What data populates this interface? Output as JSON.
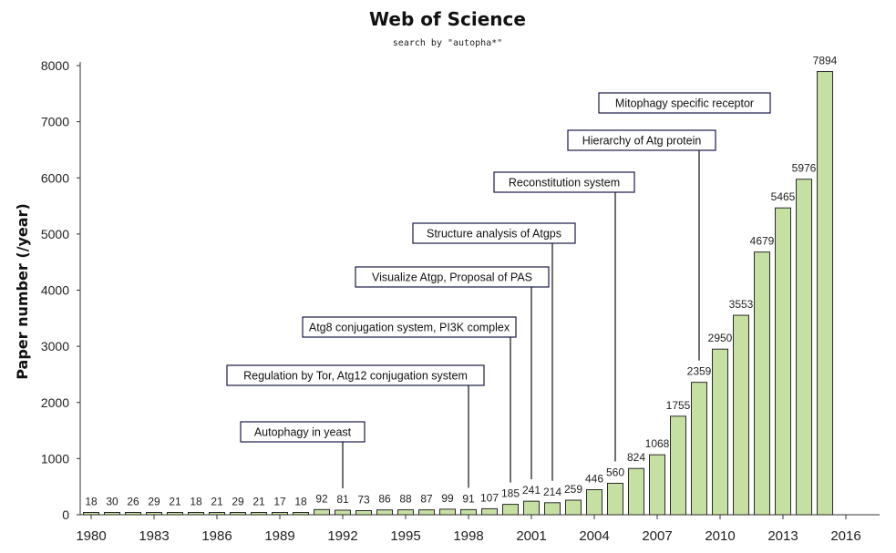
{
  "chart_data": {
    "type": "bar",
    "title": "Web of Science",
    "subtitle": "search by \"autopha*\"",
    "ylabel": "Paper number (/year)",
    "xlabel": "",
    "ylim": [
      0,
      8000
    ],
    "yticks": [
      0,
      1000,
      2000,
      3000,
      4000,
      5000,
      6000,
      7000,
      8000
    ],
    "xticks": [
      "1980",
      "1983",
      "1986",
      "1989",
      "1992",
      "1995",
      "1998",
      "2001",
      "2004",
      "2007",
      "2010",
      "2013",
      "2016"
    ],
    "x": [
      1980,
      1981,
      1982,
      1983,
      1984,
      1985,
      1986,
      1987,
      1988,
      1989,
      1990,
      1991,
      1992,
      1993,
      1994,
      1995,
      1996,
      1997,
      1998,
      1999,
      2000,
      2001,
      2002,
      2003,
      2004,
      2005,
      2006,
      2007,
      2008,
      2009,
      2010,
      2011,
      2012,
      2013,
      2014,
      2015
    ],
    "values": [
      18,
      30,
      26,
      29,
      21,
      18,
      21,
      29,
      21,
      17,
      18,
      92,
      81,
      73,
      86,
      88,
      87,
      99,
      91,
      107,
      185,
      241,
      214,
      259,
      446,
      560,
      824,
      1068,
      1755,
      2359,
      2950,
      3553,
      4679,
      5465,
      5976,
      7894
    ],
    "bar_color": "#c6e0a4",
    "grid": false,
    "annotations": [
      {
        "text": "Autophagy in yeast",
        "year": 1992
      },
      {
        "text": "Regulation by Tor, Atg12 conjugation system",
        "year": 1998
      },
      {
        "text": "Atg8 conjugation system, PI3K complex",
        "year": 2000
      },
      {
        "text": "Visualize Atgp, Proposal of PAS",
        "year": 2001
      },
      {
        "text": "Structure analysis of Atgps",
        "year": 2002
      },
      {
        "text": "Reconstitution system",
        "year": 2005
      },
      {
        "text": "Hierarchy of Atg protein",
        "year": 2009
      },
      {
        "text": "Mitophagy specific receptor",
        "year": null
      }
    ]
  }
}
